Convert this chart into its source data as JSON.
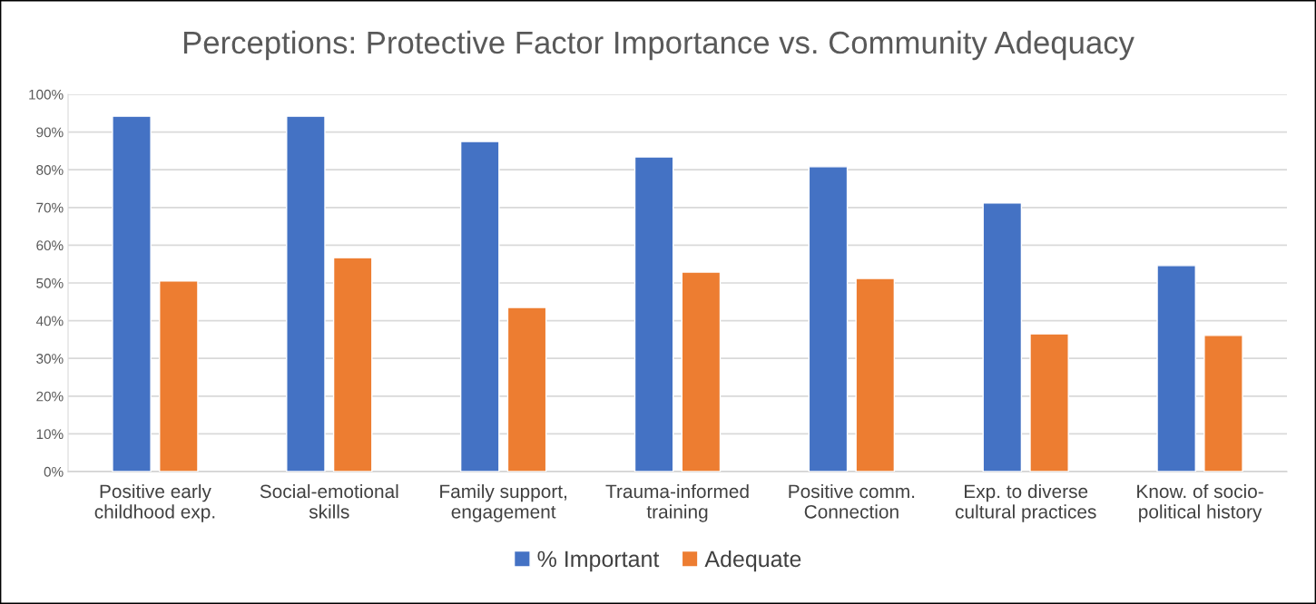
{
  "chart_data": {
    "type": "bar",
    "title": "Perceptions: Protective Factor Importance vs. Community Adequacy",
    "categories": [
      "Positive early\nchildhood exp.",
      "Social-emotional\nskills",
      "Family support,\nengagement",
      "Trauma-informed\ntraining",
      "Positive comm.\nConnection",
      "Exp. to diverse\ncultural practices",
      "Know. of socio-\npolitical history"
    ],
    "series": [
      {
        "name": "% Important",
        "color": "#4472c4",
        "values": [
          94.2,
          94.2,
          87.5,
          83.4,
          80.8,
          71.2,
          54.6
        ]
      },
      {
        "name": "Adequate",
        "color": "#ed7d31",
        "values": [
          50.5,
          56.7,
          43.5,
          52.9,
          51.2,
          36.5,
          36.1
        ]
      }
    ],
    "ylim": [
      0,
      100
    ],
    "yticks": [
      {
        "value": 0,
        "label": "0%"
      },
      {
        "value": 10,
        "label": "10%"
      },
      {
        "value": 20,
        "label": "20%"
      },
      {
        "value": 30,
        "label": "30%"
      },
      {
        "value": 40,
        "label": "40%"
      },
      {
        "value": 50,
        "label": "50%"
      },
      {
        "value": 60,
        "label": "60%"
      },
      {
        "value": 70,
        "label": "70%"
      },
      {
        "value": 80,
        "label": "80%"
      },
      {
        "value": 90,
        "label": "90%"
      },
      {
        "value": 100,
        "label": "100%"
      }
    ],
    "grid": "y",
    "legend": "bottom"
  }
}
